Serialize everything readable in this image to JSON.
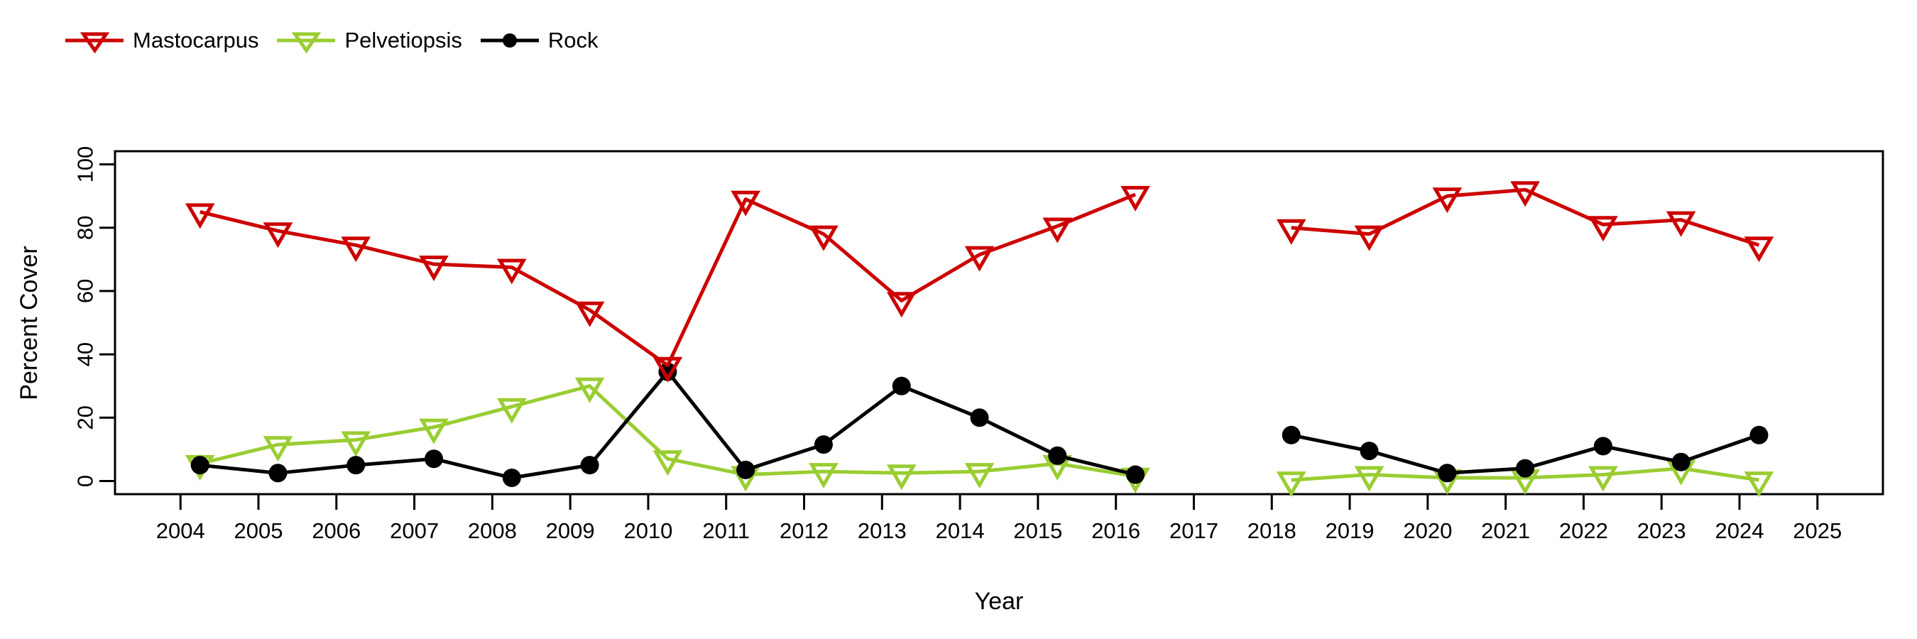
{
  "figure": {
    "background_color": "#ffffff",
    "axis_color": "#000000",
    "x_axis_title": "Year",
    "y_axis_title": "Percent Cover"
  },
  "legend": {
    "position": "top-left",
    "items": [
      {
        "label": "Mastocarpus",
        "color": "#cc0000",
        "marker": "triangle-down-open"
      },
      {
        "label": "Pelvetiopsis",
        "color": "#9acd32",
        "marker": "triangle-down-open"
      },
      {
        "label": "Rock",
        "color": "#000000",
        "marker": "circle-filled"
      }
    ]
  },
  "chart_data": {
    "type": "line",
    "title": "",
    "xlabel": "Year",
    "ylabel": "Percent Cover",
    "x": [
      2004,
      2005,
      2006,
      2007,
      2008,
      2009,
      2010,
      2011,
      2012,
      2013,
      2014,
      2015,
      2016,
      2017,
      2018,
      2019,
      2020,
      2021,
      2022,
      2023,
      2024
    ],
    "x_point_offset": 0.25,
    "x_tick_labels": [
      "2004",
      "2005",
      "2006",
      "2007",
      "2008",
      "2009",
      "2010",
      "2011",
      "2012",
      "2013",
      "2014",
      "2015",
      "2016",
      "2017",
      "2018",
      "2019",
      "2020",
      "2021",
      "2022",
      "2023",
      "2024",
      "2025"
    ],
    "y_ticks": [
      0,
      20,
      40,
      60,
      80,
      100
    ],
    "xlim": [
      2003.16,
      2025.84
    ],
    "ylim": [
      -4.16,
      104.16
    ],
    "grid": false,
    "gap_years": [
      2017,
      2025
    ],
    "series": [
      {
        "name": "Pelvetiopsis",
        "color": "#9acd32",
        "marker": "triangle-down-open",
        "values": [
          5.5,
          11.5,
          13,
          17,
          23.5,
          30,
          7,
          2,
          3,
          2.5,
          3,
          5.5,
          1.5,
          null,
          0.3,
          2,
          1,
          1,
          2,
          4,
          0.3
        ]
      },
      {
        "name": "Rock",
        "color": "#000000",
        "marker": "circle-filled",
        "values": [
          5,
          2.5,
          5,
          7,
          1,
          5,
          34.5,
          3.5,
          11.5,
          30,
          20,
          8,
          2,
          null,
          14.5,
          9.5,
          2.5,
          4,
          11,
          6,
          14.5
        ]
      },
      {
        "name": "Mastocarpus",
        "color": "#cc0000",
        "marker": "triangle-down-open",
        "values": [
          85,
          79,
          74.5,
          68.5,
          67.5,
          54,
          36.5,
          89,
          78,
          57,
          71.5,
          80.5,
          90.5,
          null,
          80,
          78,
          90,
          92,
          81,
          82.5,
          74.5
        ]
      }
    ]
  }
}
